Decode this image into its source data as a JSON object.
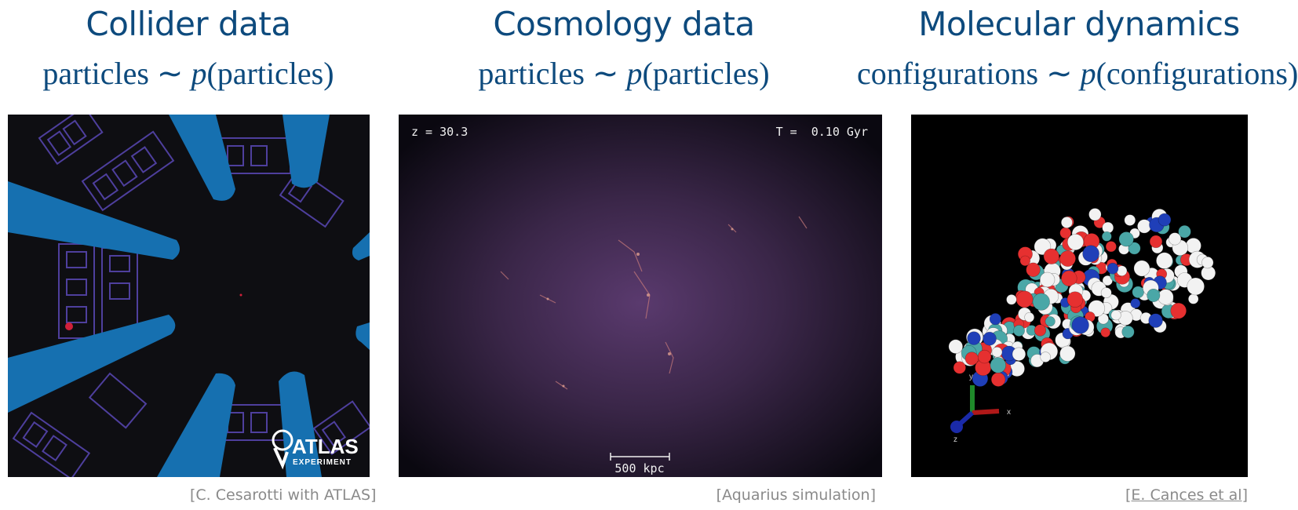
{
  "columns": [
    {
      "title": "Collider data",
      "formula": {
        "lhs": "particles",
        "sim": "∼",
        "p": "p",
        "rhs": "(particles)"
      },
      "caption": "[C. Cesarotti with ATLAS]",
      "logo": {
        "main": "ATLAS",
        "sub": "EXPERIMENT"
      }
    },
    {
      "title": "Cosmology data",
      "formula": {
        "lhs": "particles",
        "sim": "∼",
        "p": "p",
        "rhs": "(particles)"
      },
      "caption": "[Aquarius simulation]",
      "overlay": {
        "redshift": "z = 30.3",
        "time": "T =  0.10 Gyr",
        "scale": "500 kpc"
      }
    },
    {
      "title": "Molecular dynamics",
      "formula": {
        "lhs": "configurations",
        "sim": "∼",
        "p": "p",
        "rhs": "(configurations)"
      },
      "caption": "[E. Cances et al]",
      "axes": {
        "x": "x",
        "y": "y",
        "z": "z"
      }
    }
  ],
  "colors": {
    "title": "#0d4a7d",
    "caption": "#8a8a8a",
    "beam": "#1670b0",
    "detector": "#5a48b8"
  }
}
